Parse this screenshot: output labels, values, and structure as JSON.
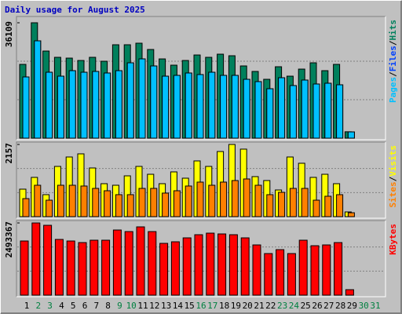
{
  "chart_data": [
    {
      "type": "bar",
      "title": "Daily usage for August 2025",
      "ylim": [
        0,
        36109
      ],
      "yticks": [
        36109
      ],
      "legend_separator": "/",
      "series": [
        {
          "name": "Hits",
          "color": "#00805c",
          "values": [
            23090,
            36109,
            27260,
            25300,
            25050,
            24310,
            25300,
            24070,
            29230,
            29230,
            29720,
            27750,
            24800,
            22840,
            24310,
            26030,
            25300,
            26280,
            25790,
            22600,
            20880,
            18420,
            22350,
            19400,
            21610,
            23580,
            21120,
            23090,
            2000,
            0,
            0
          ]
        },
        {
          "name": "Files",
          "color": "#0040ff",
          "values": [
            19160,
            30460,
            20630,
            19400,
            21120,
            20630,
            20880,
            20390,
            21120,
            23580,
            24810,
            22600,
            19400,
            19650,
            20390,
            19900,
            20630,
            19650,
            19650,
            18420,
            17690,
            15470,
            18910,
            16460,
            18180,
            16950,
            17190,
            16700,
            1960,
            0,
            0
          ]
        },
        {
          "name": "Pages",
          "color": "#00c0ff",
          "values": [
            19160,
            30460,
            20630,
            19400,
            21120,
            20630,
            20880,
            20390,
            21120,
            23580,
            24810,
            22600,
            19400,
            19650,
            20390,
            19900,
            20630,
            19650,
            19650,
            18420,
            17690,
            15470,
            18910,
            16460,
            18180,
            16950,
            17190,
            16700,
            1960,
            0,
            0
          ]
        }
      ]
    },
    {
      "type": "bar",
      "ylim": [
        0,
        2157
      ],
      "yticks": [
        2157
      ],
      "legend_separator": "/",
      "series": [
        {
          "name": "Visits",
          "color": "#ffff00",
          "values": [
            821,
            1173,
            657,
            1501,
            1782,
            1876,
            1454,
            985,
            938,
            1219,
            1501,
            1266,
            985,
            1337,
            1149,
            1665,
            1501,
            1946,
            2157,
            2017,
            1196,
            1079,
            797,
            1782,
            1595,
            1173,
            1266,
            985,
            141,
            0,
            0
          ]
        },
        {
          "name": "Sites",
          "color": "#ff8000",
          "values": [
            539,
            938,
            492,
            938,
            938,
            915,
            844,
            774,
            657,
            657,
            844,
            844,
            704,
            774,
            915,
            1032,
            938,
            1032,
            1079,
            1126,
            938,
            657,
            727,
            844,
            844,
            492,
            610,
            657,
            117,
            0,
            0
          ]
        }
      ]
    },
    {
      "type": "bar",
      "ylim": [
        0,
        2493367
      ],
      "yticks": [
        2493367
      ],
      "categories": [
        "1",
        "2",
        "3",
        "4",
        "5",
        "6",
        "7",
        "8",
        "9",
        "10",
        "11",
        "12",
        "13",
        "14",
        "15",
        "16",
        "17",
        "18",
        "19",
        "20",
        "21",
        "22",
        "23",
        "24",
        "25",
        "26",
        "27",
        "28",
        "29",
        "30",
        "31"
      ],
      "category_colors": [
        "#000000",
        "#008040",
        "#008040",
        "#000000",
        "#000000",
        "#000000",
        "#000000",
        "#000000",
        "#008040",
        "#008040",
        "#000000",
        "#000000",
        "#000000",
        "#000000",
        "#000000",
        "#008040",
        "#008040",
        "#000000",
        "#000000",
        "#000000",
        "#000000",
        "#000000",
        "#008040",
        "#008040",
        "#000000",
        "#000000",
        "#000000",
        "#000000",
        "#000000",
        "#008040",
        "#008040"
      ],
      "series": [
        {
          "name": "KBytes",
          "color": "#ff0000",
          "values": [
            1870040,
            2493367,
            2412100,
            1924200,
            1870040,
            1815800,
            1897100,
            1897100,
            2249500,
            2195300,
            2357900,
            2195300,
            1788700,
            1842900,
            1978400,
            2086900,
            2141100,
            2114000,
            2086900,
            1978400,
            1734500,
            1436400,
            1571900,
            1436400,
            1897100,
            1707400,
            1734500,
            1815800,
            189700,
            0,
            0
          ]
        }
      ]
    }
  ]
}
